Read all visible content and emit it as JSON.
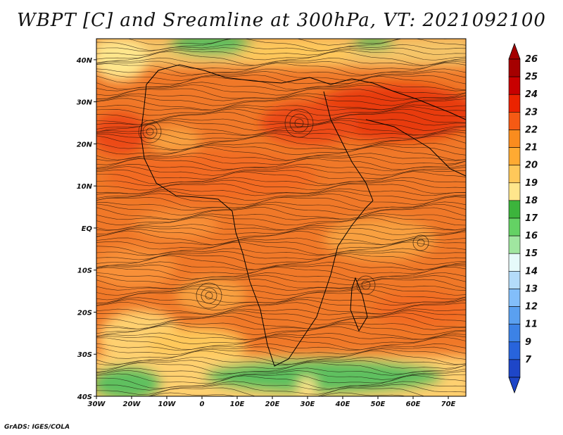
{
  "title": "WBPT [C] and Sreamline at 300hPa, VT: 2021092100",
  "credit": "GrADS: IGES/COLA",
  "map": {
    "lon_range": [
      -30,
      75
    ],
    "lat_range": [
      -40,
      45
    ],
    "lon_ticks": [
      {
        "value": -30,
        "label": "30W"
      },
      {
        "value": -20,
        "label": "20W"
      },
      {
        "value": -10,
        "label": "10W"
      },
      {
        "value": 0,
        "label": "0"
      },
      {
        "value": 10,
        "label": "10E"
      },
      {
        "value": 20,
        "label": "20E"
      },
      {
        "value": 30,
        "label": "30E"
      },
      {
        "value": 40,
        "label": "40E"
      },
      {
        "value": 50,
        "label": "50E"
      },
      {
        "value": 60,
        "label": "60E"
      },
      {
        "value": 70,
        "label": "70E"
      }
    ],
    "lat_ticks": [
      {
        "value": 40,
        "label": "40N"
      },
      {
        "value": 30,
        "label": "30N"
      },
      {
        "value": 20,
        "label": "20N"
      },
      {
        "value": 10,
        "label": "10N"
      },
      {
        "value": 0,
        "label": "EQ"
      },
      {
        "value": -10,
        "label": "10S"
      },
      {
        "value": -20,
        "label": "20S"
      },
      {
        "value": -30,
        "label": "30S"
      },
      {
        "value": -40,
        "label": "40S"
      }
    ]
  },
  "colorbar": {
    "levels": [
      {
        "label": "26",
        "color": "#a50000"
      },
      {
        "label": "25",
        "color": "#c80000"
      },
      {
        "label": "24",
        "color": "#eb2300"
      },
      {
        "label": "23",
        "color": "#f55a14"
      },
      {
        "label": "22",
        "color": "#fa8c1e"
      },
      {
        "label": "21",
        "color": "#ffaa32"
      },
      {
        "label": "20",
        "color": "#ffc85a"
      },
      {
        "label": "19",
        "color": "#ffe68c"
      },
      {
        "label": "18",
        "color": "#3cb43c"
      },
      {
        "label": "17",
        "color": "#64d264"
      },
      {
        "label": "16",
        "color": "#a0e6a0"
      },
      {
        "label": "15",
        "color": "#e6fafa"
      },
      {
        "label": "14",
        "color": "#b4dcfa"
      },
      {
        "label": "13",
        "color": "#82befa"
      },
      {
        "label": "12",
        "color": "#5aa0f0"
      },
      {
        "label": "11",
        "color": "#3c82e6"
      },
      {
        "label": "9",
        "color": "#2864dc"
      },
      {
        "label": "7",
        "color": "#1e46c8"
      }
    ]
  }
}
